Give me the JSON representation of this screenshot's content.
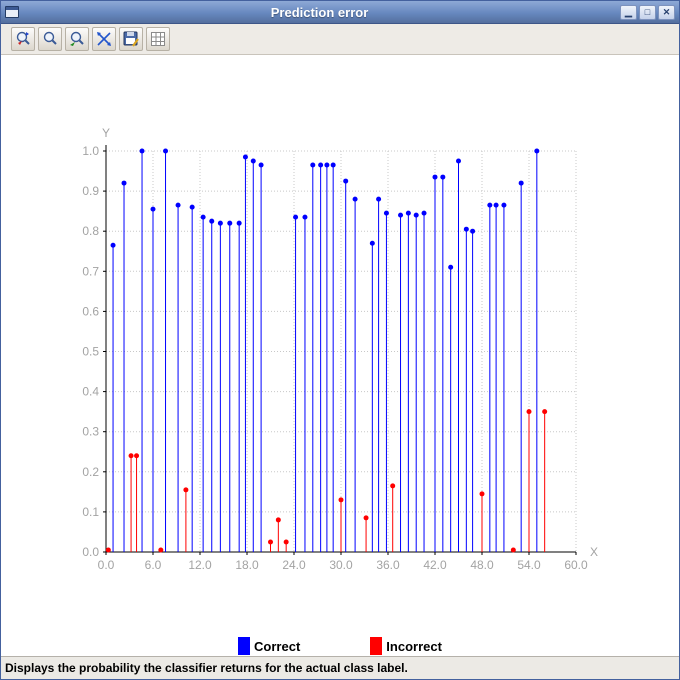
{
  "window": {
    "title": "Prediction error",
    "controls": {
      "minimize": "▁",
      "maximize": "□",
      "close": "✕"
    }
  },
  "toolbar": {
    "buttons": [
      "zoom-selection",
      "zoom-in",
      "zoom-pan",
      "resize-cross",
      "save",
      "grid"
    ]
  },
  "legend": {
    "items": [
      {
        "label": "Correct",
        "color": "#0000ff"
      },
      {
        "label": "Incorrect",
        "color": "#ff0000"
      }
    ]
  },
  "status": {
    "text": "Displays the probability the classifier returns for the actual class label."
  },
  "chart_data": {
    "type": "scatter",
    "subtype": "stem",
    "title": "",
    "xlabel": "X",
    "ylabel": "Y",
    "xlim": [
      0,
      60
    ],
    "ylim": [
      0,
      1
    ],
    "grid": true,
    "xticks": [
      "0.0",
      "6.0",
      "12.0",
      "18.0",
      "24.0",
      "30.0",
      "36.0",
      "42.0",
      "48.0",
      "54.0",
      "60.0"
    ],
    "yticks": [
      "0.0",
      "0.1",
      "0.2",
      "0.3",
      "0.4",
      "0.5",
      "0.6",
      "0.7",
      "0.8",
      "0.9",
      "1.0"
    ],
    "tick_color": "#a3a3a3",
    "grid_color": "#c8c8c8",
    "axis_color": "#000000",
    "series": [
      {
        "name": "Correct",
        "color": "#0000ff",
        "points": [
          [
            0.9,
            0.765
          ],
          [
            2.3,
            0.92
          ],
          [
            4.6,
            1.0
          ],
          [
            6.0,
            0.855
          ],
          [
            7.6,
            1.0
          ],
          [
            9.2,
            0.865
          ],
          [
            11.0,
            0.86
          ],
          [
            12.4,
            0.835
          ],
          [
            13.5,
            0.825
          ],
          [
            14.6,
            0.82
          ],
          [
            15.8,
            0.82
          ],
          [
            17.0,
            0.82
          ],
          [
            17.8,
            0.985
          ],
          [
            18.8,
            0.975
          ],
          [
            19.8,
            0.965
          ],
          [
            24.2,
            0.835
          ],
          [
            25.4,
            0.835
          ],
          [
            26.4,
            0.965
          ],
          [
            27.4,
            0.965
          ],
          [
            28.2,
            0.965
          ],
          [
            29.0,
            0.965
          ],
          [
            30.6,
            0.925
          ],
          [
            31.8,
            0.88
          ],
          [
            34.0,
            0.77
          ],
          [
            34.8,
            0.88
          ],
          [
            35.8,
            0.845
          ],
          [
            37.6,
            0.84
          ],
          [
            38.6,
            0.845
          ],
          [
            39.6,
            0.84
          ],
          [
            40.6,
            0.845
          ],
          [
            42.0,
            0.935
          ],
          [
            43.0,
            0.935
          ],
          [
            44.0,
            0.71
          ],
          [
            45.0,
            0.975
          ],
          [
            46.0,
            0.805
          ],
          [
            46.8,
            0.8
          ],
          [
            49.0,
            0.865
          ],
          [
            49.8,
            0.865
          ],
          [
            50.8,
            0.865
          ],
          [
            53.0,
            0.92
          ],
          [
            55.0,
            1.0
          ]
        ]
      },
      {
        "name": "Incorrect",
        "color": "#ff0000",
        "points": [
          [
            0.3,
            0.005
          ],
          [
            3.2,
            0.24
          ],
          [
            3.9,
            0.24
          ],
          [
            7.0,
            0.005
          ],
          [
            10.2,
            0.155
          ],
          [
            21.0,
            0.025
          ],
          [
            22.0,
            0.08
          ],
          [
            23.0,
            0.025
          ],
          [
            30.0,
            0.13
          ],
          [
            33.2,
            0.085
          ],
          [
            36.6,
            0.165
          ],
          [
            48.0,
            0.145
          ],
          [
            52.0,
            0.005
          ],
          [
            54.0,
            0.35
          ],
          [
            56.0,
            0.35
          ]
        ]
      }
    ]
  }
}
